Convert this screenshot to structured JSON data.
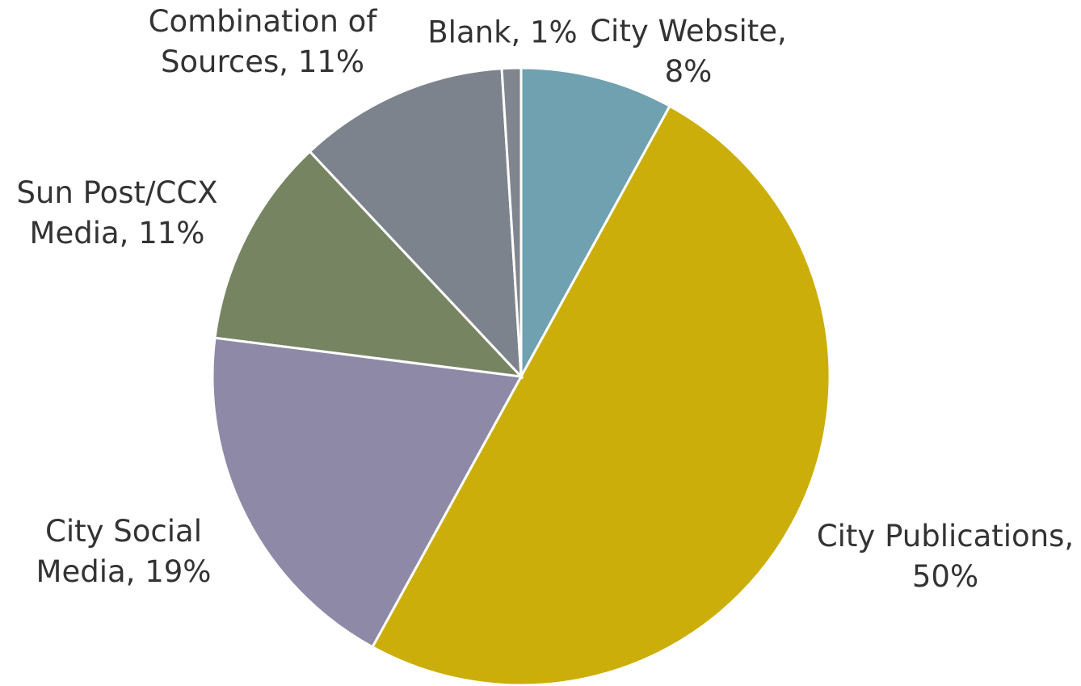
{
  "chart_data": {
    "type": "pie",
    "categories": [
      "City Website",
      "City Publications",
      "City Social Media",
      "Sun Post/CCX Media",
      "Combination of Sources",
      "Blank"
    ],
    "values": [
      8,
      50,
      19,
      11,
      11,
      1
    ],
    "value_labels": [
      "City Website, 8%",
      "City Publications, 50%",
      "City Social Media, 19%",
      "Sun Post/CCX Media, 11%",
      "Combination of Sources, 11%",
      "Blank, 1%"
    ],
    "colors": [
      "#6fa1b1",
      "#cbae0a",
      "#8e89a6",
      "#778461",
      "#7d838c",
      "#80858e"
    ]
  }
}
